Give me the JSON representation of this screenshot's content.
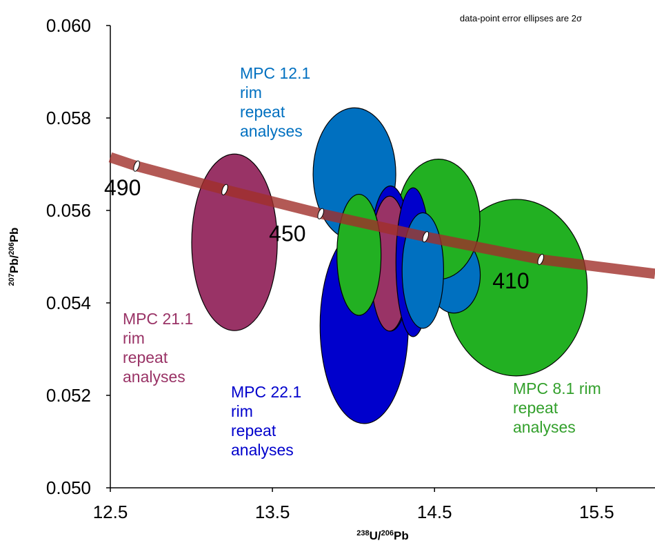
{
  "chart_data": {
    "type": "ellipse",
    "note": "data-point error ellipses are 2σ",
    "x_label": [
      "238",
      "U/",
      "206",
      "Pb"
    ],
    "y_label": [
      "207",
      "Pb/",
      "206",
      "Pb"
    ],
    "xlim": [
      12.5,
      15.86
    ],
    "ylim": [
      0.05,
      0.06
    ],
    "xticks": [
      12.5,
      13.5,
      14.5,
      15.5
    ],
    "yticks": [
      {
        "value": 0.05,
        "label": "0.050"
      },
      {
        "value": 0.052,
        "label": "0.052"
      },
      {
        "value": 0.054,
        "label": "0.054"
      },
      {
        "value": 0.056,
        "label": "0.056"
      },
      {
        "value": 0.058,
        "label": "0.058"
      },
      {
        "value": 0.06,
        "label": "0.060"
      }
    ],
    "ellipses": [
      {
        "x": 14.066,
        "y": 0.05351,
        "rx": 0.272,
        "ry": 0.00212,
        "color": "#0000cc"
      },
      {
        "x": 14.006,
        "y": 0.05679,
        "rx": 0.255,
        "ry": 0.00143,
        "color": "#0070c0"
      },
      {
        "x": 15.004,
        "y": 0.05433,
        "rx": 0.438,
        "ry": 0.00191,
        "color": "#22b022"
      },
      {
        "x": 14.62,
        "y": 0.0546,
        "rx": 0.162,
        "ry": 0.00082,
        "color": "#0070c0"
      },
      {
        "x": 14.525,
        "y": 0.05581,
        "rx": 0.255,
        "ry": 0.0013,
        "color": "#22b022"
      },
      {
        "x": 14.228,
        "y": 0.05496,
        "rx": 0.128,
        "ry": 0.00157,
        "color": "#0000cc"
      },
      {
        "x": 14.223,
        "y": 0.05485,
        "rx": 0.119,
        "ry": 0.00146,
        "color": "#993366"
      },
      {
        "x": 14.034,
        "y": 0.05504,
        "rx": 0.136,
        "ry": 0.00131,
        "color": "#22b022"
      },
      {
        "x": 14.368,
        "y": 0.05488,
        "rx": 0.106,
        "ry": 0.00161,
        "color": "#0000cc"
      },
      {
        "x": 14.428,
        "y": 0.0547,
        "rx": 0.128,
        "ry": 0.00125,
        "color": "#0070c0"
      },
      {
        "x": 13.266,
        "y": 0.05531,
        "rx": 0.264,
        "ry": 0.00191,
        "color": "#993366"
      }
    ],
    "concordia": {
      "x": [
        12.5,
        12.662,
        13.206,
        13.798,
        14.445,
        15.155,
        15.86
      ],
      "y": [
        0.05715,
        0.05696,
        0.05645,
        0.05593,
        0.05543,
        0.05494,
        0.05463
      ],
      "color": "#a0302a"
    },
    "age_markers": [
      {
        "x": 12.662,
        "y": 0.05696
      },
      {
        "x": 13.206,
        "y": 0.05645,
        "label": "490"
      },
      {
        "x": 13.798,
        "y": 0.05593,
        "label": "450"
      },
      {
        "x": 14.445,
        "y": 0.05543
      },
      {
        "x": 15.155,
        "y": 0.05494,
        "label": "410"
      }
    ],
    "annotations": [
      {
        "lines": [
          "MPC 12.1",
          "rim",
          "repeat",
          "analyses"
        ],
        "color": "#0070c0"
      },
      {
        "lines": [
          "MPC 21.1",
          "rim",
          "repeat",
          "analyses"
        ],
        "color": "#993366"
      },
      {
        "lines": [
          "MPC 22.1",
          "rim",
          "repeat",
          "analyses"
        ],
        "color": "#0000cc"
      },
      {
        "lines": [
          "MPC 8.1 rim",
          "repeat",
          "analyses"
        ],
        "color": "#33a02c"
      }
    ]
  }
}
